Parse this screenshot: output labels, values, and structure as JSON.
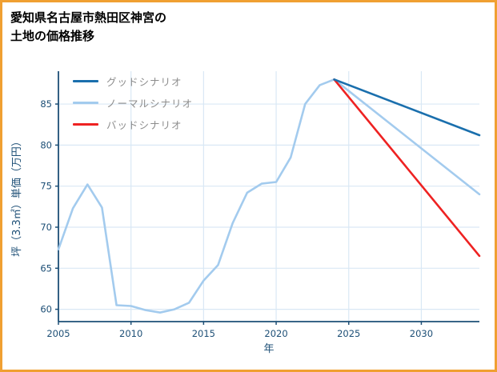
{
  "frame": {
    "border_color": "#f0a032",
    "background": "#ffffff"
  },
  "title": {
    "line1": "愛知県名古屋市熱田区神宮の",
    "line2": "土地の価格推移"
  },
  "chart_data": {
    "type": "line",
    "title": "愛知県名古屋市熱田区神宮の土地の価格推移",
    "xlabel": "年",
    "ylabel": "坪（3.3㎡）単価（万円）",
    "xlim": [
      2005,
      2034
    ],
    "ylim": [
      58.5,
      89
    ],
    "xticks": [
      2005,
      2010,
      2015,
      2020,
      2025,
      2030
    ],
    "yticks": [
      60,
      65,
      70,
      75,
      80,
      85
    ],
    "grid": true,
    "legend_position": "upper-left",
    "axis_color": "#1d4f76",
    "grid_color": "#d9e8f5",
    "draw_order": [
      1,
      2,
      0
    ],
    "series": [
      {
        "name": "グッドシナリオ",
        "color": "#1a6fad",
        "width": 2.6,
        "x": [
          2024,
          2034
        ],
        "y": [
          88.0,
          81.2
        ]
      },
      {
        "name": "ノーマルシナリオ",
        "color": "#a3cbee",
        "width": 2.6,
        "x": [
          2005,
          2006,
          2007,
          2008,
          2009,
          2010,
          2011,
          2012,
          2013,
          2014,
          2015,
          2016,
          2017,
          2018,
          2019,
          2020,
          2021,
          2022,
          2023,
          2024,
          2034
        ],
        "y": [
          67.3,
          72.3,
          75.2,
          72.4,
          60.5,
          60.4,
          59.9,
          59.6,
          60.0,
          60.8,
          63.5,
          65.4,
          70.5,
          74.2,
          75.3,
          75.5,
          78.5,
          85.0,
          87.3,
          88.0,
          74.0
        ]
      },
      {
        "name": "バッドシナリオ",
        "color": "#ee2222",
        "width": 2.6,
        "x": [
          2024,
          2034
        ],
        "y": [
          88.0,
          66.5
        ]
      }
    ]
  }
}
